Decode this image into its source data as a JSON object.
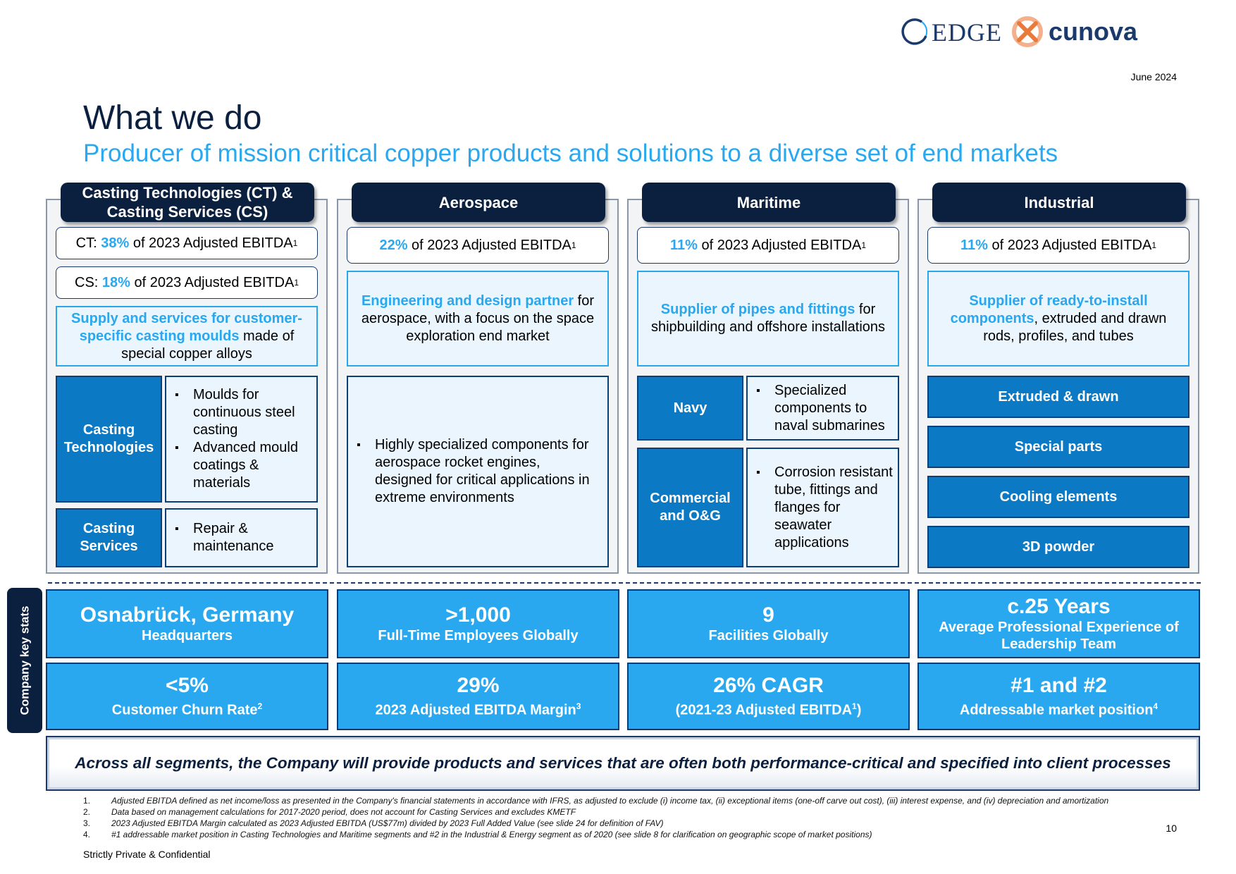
{
  "brand": {
    "edge": "EDGE",
    "cunova": "cunova",
    "edge_color": "#1b3a6b",
    "cunova_color": "#1b3a6b",
    "cunova_accent": "#f08a4b"
  },
  "date": "June 2024",
  "title": "What we do",
  "subtitle": "Producer of mission critical copper products and solutions to a diverse set of end markets",
  "colors": {
    "navy": "#0b1f3f",
    "light_blue": "#29a8f0",
    "mid_blue": "#0b79c4",
    "pale": "#eaf5fd"
  },
  "columns": {
    "ct": {
      "header": "Casting Technologies (CT) & Casting Services (CS)",
      "ct_pill": {
        "prefix": "CT: ",
        "pct": "38%",
        "text": " of 2023 Adjusted EBITDA",
        "sup": "1"
      },
      "cs_pill": {
        "prefix": "CS: ",
        "pct": "18%",
        "text": " of 2023 Adjusted EBITDA",
        "sup": "1"
      },
      "desc_bold": "Supply and services for customer-specific casting moulds",
      "desc_rest": " made of special copper alloys",
      "rows": [
        {
          "label": "Casting Technologies",
          "items": [
            "Moulds for continuous steel casting",
            "Advanced mould coatings & materials"
          ]
        },
        {
          "label": "Casting Services",
          "items": [
            "Repair & maintenance"
          ]
        }
      ]
    },
    "aero": {
      "header": "Aerospace",
      "pill": {
        "pct": "22%",
        "text": " of 2023 Adjusted EBITDA",
        "sup": "1"
      },
      "desc_bold": "Engineering and design partner",
      "desc_rest": " for aerospace, with a focus on the space exploration end market",
      "items": [
        "Highly specialized components for aerospace rocket engines, designed for critical applications in extreme environments"
      ]
    },
    "mari": {
      "header": "Maritime",
      "pill": {
        "pct": "11%",
        "text": " of 2023 Adjusted EBITDA",
        "sup": "1"
      },
      "desc_bold": "Supplier of pipes and fittings",
      "desc_rest": " for shipbuilding and offshore installations",
      "rows": [
        {
          "label": "Navy",
          "items": [
            "Specialized components to naval submarines"
          ]
        },
        {
          "label": "Commercial and O&G",
          "items": [
            "Corrosion resistant tube, fittings and flanges for seawater applications"
          ]
        }
      ]
    },
    "ind": {
      "header": "Industrial",
      "pill": {
        "pct": "11%",
        "text": " of 2023 Adjusted EBITDA",
        "sup": "1"
      },
      "desc_bold": "Supplier of ready-to-install components",
      "desc_rest": ", extruded and drawn rods, profiles, and tubes",
      "items": [
        "Extruded & drawn",
        "Special parts",
        "Cooling elements",
        "3D powder"
      ]
    }
  },
  "key_stats_label": "Company key stats",
  "stats": [
    {
      "big": "Osnabrück, Germany",
      "small": "Headquarters",
      "sup": ""
    },
    {
      "big": ">1,000",
      "small": "Full-Time Employees Globally",
      "sup": ""
    },
    {
      "big": "9",
      "small": "Facilities Globally",
      "sup": ""
    },
    {
      "big": "c.25 Years",
      "small": "Average Professional Experience of Leadership Team",
      "sup": ""
    },
    {
      "big": "<5%",
      "small": "Customer Churn Rate",
      "sup": "2"
    },
    {
      "big": "29%",
      "small": "2023 Adjusted EBITDA Margin",
      "sup": "3"
    },
    {
      "big": "26% CAGR",
      "small": "(2021-23 Adjusted EBITDA",
      "sup": "1",
      "tail": ")"
    },
    {
      "big": "#1 and #2",
      "small": "Addressable market position",
      "sup": "4"
    }
  ],
  "banner": "Across all segments, the Company will provide products and services that are often both performance-critical and specified into client processes",
  "footnotes": [
    {
      "n": "1.",
      "t": "Adjusted EBITDA defined as net income/loss as presented in the Company's financial statements in accordance with IFRS, as adjusted to exclude (i) income tax, (ii) exceptional items (one-off carve out cost), (iii) interest expense, and (iv) depreciation and amortization"
    },
    {
      "n": "2.",
      "t": "Data based on management calculations for 2017-2020 period, does not account for Casting Services and excludes KMETF"
    },
    {
      "n": "3.",
      "t": "2023 Adjusted EBITDA Margin calculated as 2023 Adjusted EBITDA (US$77m) divided by 2023 Full Added Value (see slide 24 for definition of FAV)"
    },
    {
      "n": "4.",
      "t": "#1 addressable market position in Casting Technologies and Maritime segments and #2 in the Industrial & Energy segment as of 2020 (see slide 8 for clarification on geographic scope of market positions)"
    }
  ],
  "page_number": "10",
  "confidential": "Strictly Private & Confidential"
}
